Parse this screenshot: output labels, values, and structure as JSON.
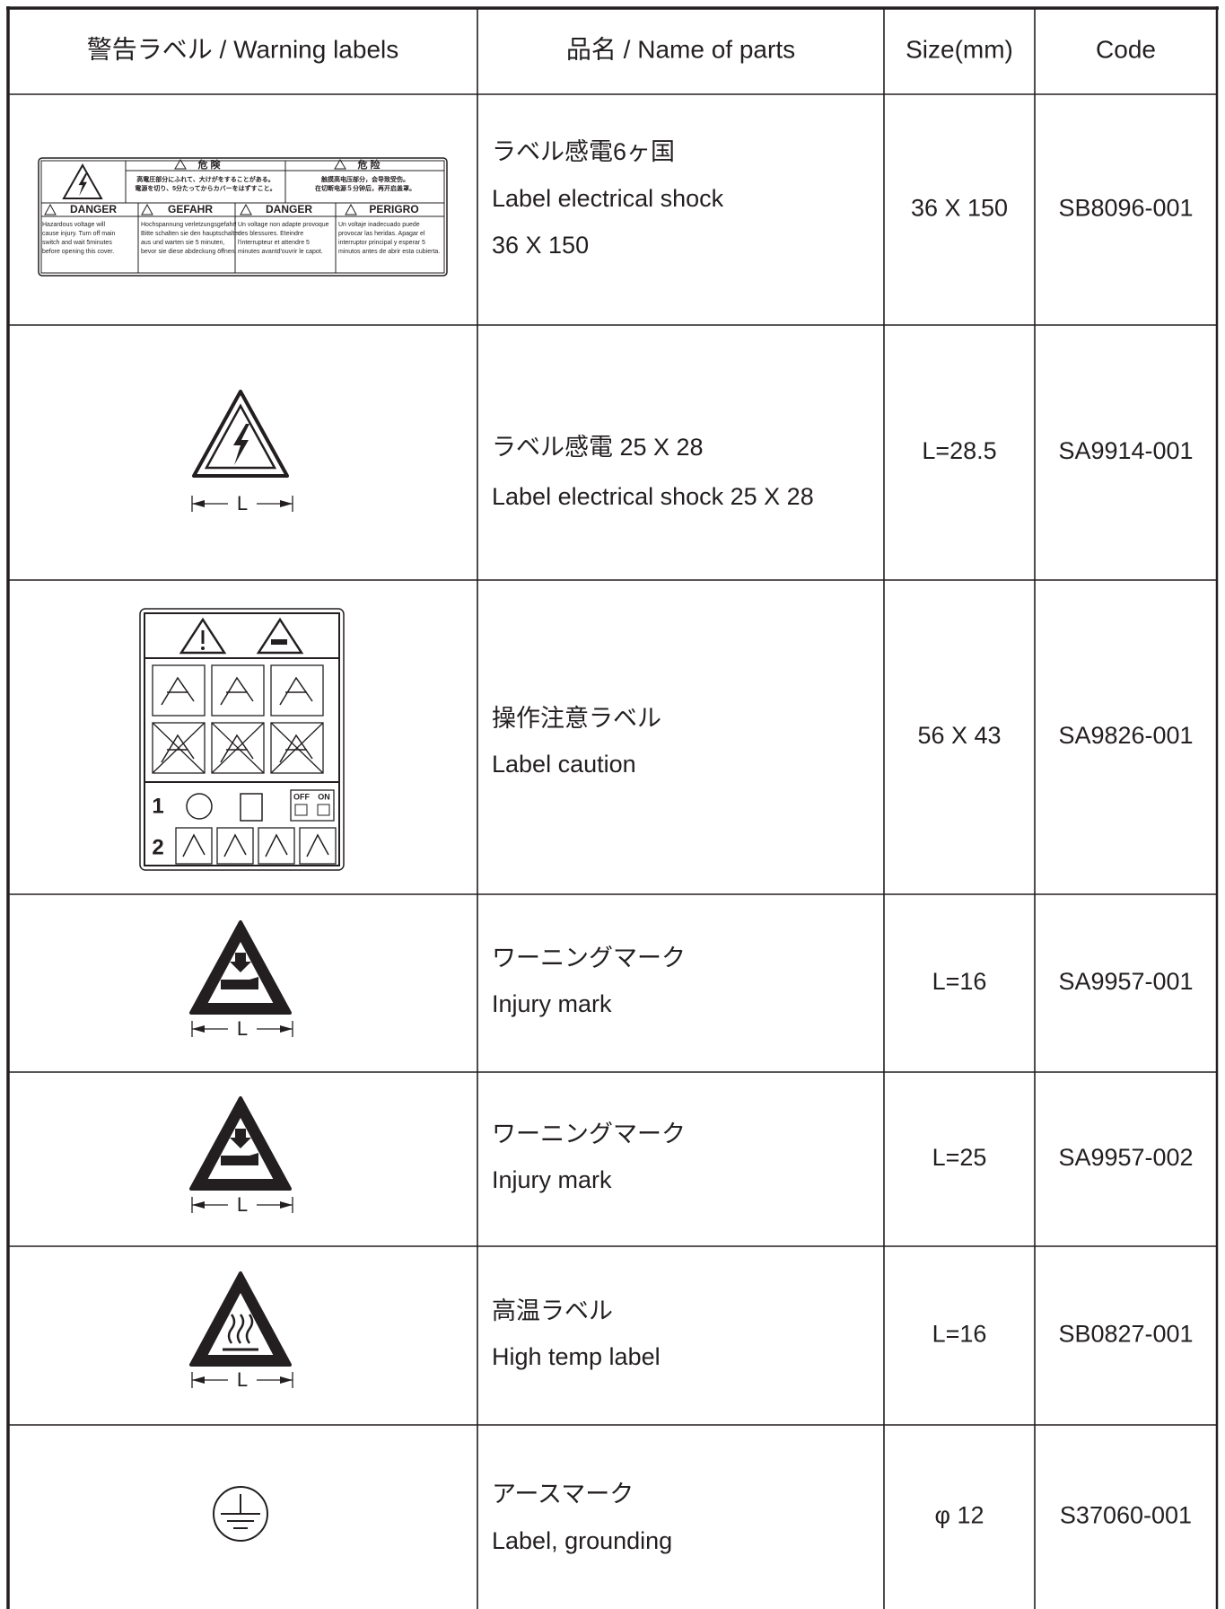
{
  "header": [
    "警告ラベル / Warning labels",
    "品名 / Name of parts",
    "Size(mm)",
    "Code"
  ],
  "rows": [
    {
      "name": [
        "ラベル感電6ヶ国",
        "Label electrical shock",
        "36 X 150"
      ],
      "size": "36 X 150",
      "code": "SB8096-001",
      "label": {
        "top": [
          "危 険",
          "危 险"
        ],
        "top_text": [
          [
            "高電圧部分にふれて、大けがをすることがある。",
            "電源を切り、5分たってからカバーをはずすこと。"
          ],
          [
            "触摸高电压部分，会导致受伤。",
            "在切断电源５分钟后，再开启盖罩。"
          ]
        ],
        "headings": [
          "DANGER",
          "GEFAHR",
          "DANGER",
          "PERIGRO"
        ],
        "text": [
          [
            "Hazardous voltage will",
            "cause injury. Turn off main",
            "switch and wait 5minutes",
            "before opening this cover."
          ],
          [
            "Hochspannung verletzungsgefahr!",
            "Bitte schalten sie den hauptschalter",
            "aus und warten sie 5 minuten,",
            "bevor sie diese abdeckung öffnen."
          ],
          [
            "Un voltage non adapte provoque",
            "des blessures. Eteindre",
            "l'interrupteur et attendre 5",
            "minutes avantd'ouvrir le capot."
          ],
          [
            "Un voltaje inadecuado puede",
            "provocar las heridas. Apagar el",
            "interruptor principal y esperar 5",
            "minutos antes de abrir esta cubierta."
          ]
        ]
      }
    },
    {
      "name": [
        "ラベル感電 25 X 28",
        "Label electrical shock 25 X 28"
      ],
      "size": "L=28.5",
      "code": "SA9914-001",
      "dimension": "L"
    },
    {
      "name": [
        "操作注意ラベル",
        "Label caution"
      ],
      "size": "56 X 43",
      "code": "SA9826-001",
      "label": {
        "steps": [
          "1",
          "2"
        ],
        "switch": [
          "OFF",
          "ON"
        ]
      }
    },
    {
      "name": [
        "ワーニングマーク",
        "Injury mark"
      ],
      "size": "L=16",
      "code": "SA9957-001",
      "dimension": "L"
    },
    {
      "name": [
        "ワーニングマーク",
        "Injury mark"
      ],
      "size": "L=25",
      "code": "SA9957-002",
      "dimension": "L"
    },
    {
      "name": [
        "高温ラベル",
        "High temp label"
      ],
      "size": "L=16",
      "code": "SB0827-001",
      "dimension": "L"
    },
    {
      "name": [
        "アースマーク",
        "Label, grounding"
      ],
      "size": "φ 12",
      "code": "S37060-001"
    }
  ]
}
